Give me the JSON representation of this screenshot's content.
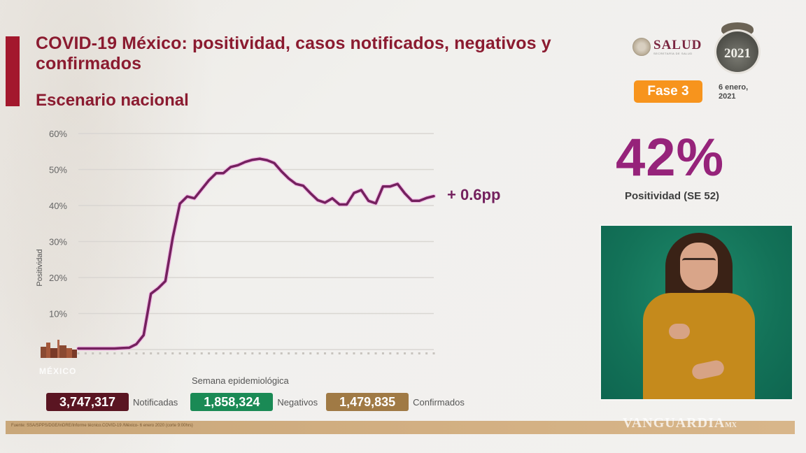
{
  "header": {
    "title": "COVID-19 México: positividad, casos notificados, negativos y confirmados",
    "subtitle": "Escenario nacional",
    "logo_salud": "SALUD",
    "logo_salud_sub": "SECRETARÍA DE SALUD",
    "year_badge": "2021",
    "fase_label": "Fase 3",
    "date_line1": "6 enero,",
    "date_line2": "2021"
  },
  "chart_data": {
    "type": "line",
    "title": "Positividad",
    "xlabel": "Semana epidemiológica",
    "ylabel": "Positividad",
    "ylim": [
      0,
      60
    ],
    "yticks": [
      "10%",
      "20%",
      "30%",
      "40%",
      "50%",
      "60%"
    ],
    "grid": true,
    "series": [
      {
        "name": "Positividad",
        "color": "#74215e",
        "values": [
          0.3,
          0.3,
          0.3,
          0.3,
          0.3,
          0.3,
          0.4,
          0.5,
          1.5,
          4,
          15.5,
          17,
          19,
          31,
          40.5,
          42.5,
          42,
          44.5,
          47,
          49,
          49,
          50.7,
          51.2,
          52.1,
          52.7,
          53,
          52.6,
          51.8,
          49.5,
          47.5,
          46,
          45.5,
          43.4,
          41.5,
          40.8,
          42,
          40.3,
          40.3,
          43.5,
          44.3,
          41.3,
          40.6,
          45.3,
          45.3,
          46,
          43.4,
          41.3,
          41.3,
          42.1,
          42.6
        ]
      }
    ],
    "annotation": "+ 0.6pp"
  },
  "kpi": {
    "value": "42%",
    "label": "Positividad (SE 52)"
  },
  "stats": [
    {
      "value": "3,747,317",
      "label": "Notificadas",
      "color": "#5a1522"
    },
    {
      "value": "1,858,324",
      "label": "Negativos",
      "color": "#1a8a55"
    },
    {
      "value": "1,479,835",
      "label": "Confirmados",
      "color": "#a07a45"
    }
  ],
  "footer": {
    "source": "Fuente: SSA/SPPS/DGE/InDRE/Informe técnico.COVID-19 /México- 6 enero 2020 (corte 9:00hrs)"
  },
  "watermark": {
    "text": "VANGUARDIA",
    "suffix": "MX"
  },
  "side_logo": "MÉXICO"
}
